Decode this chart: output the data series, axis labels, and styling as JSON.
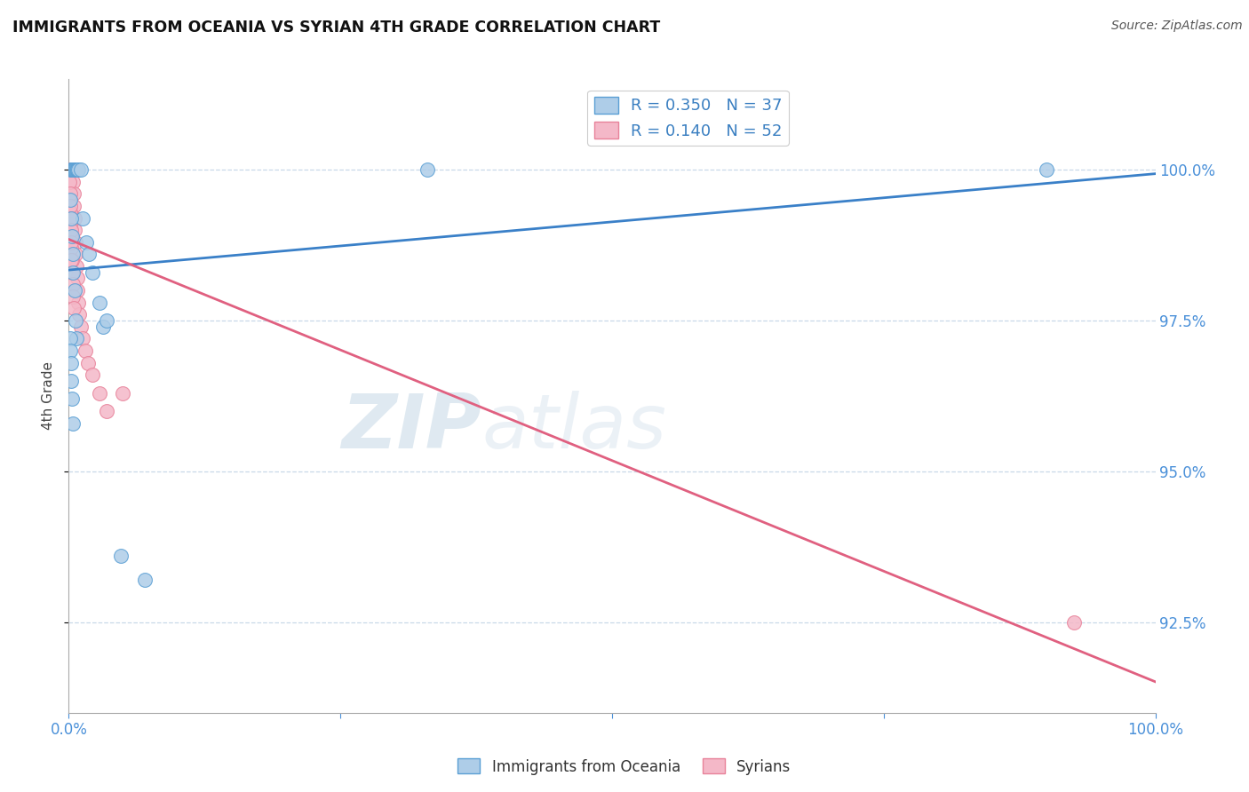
{
  "title": "IMMIGRANTS FROM OCEANIA VS SYRIAN 4TH GRADE CORRELATION CHART",
  "source": "Source: ZipAtlas.com",
  "ylabel": "4th Grade",
  "xlim": [
    0.0,
    100.0
  ],
  "ylim": [
    91.0,
    101.5
  ],
  "yticks": [
    92.5,
    95.0,
    97.5,
    100.0
  ],
  "ytick_labels": [
    "92.5%",
    "95.0%",
    "97.5%",
    "100.0%"
  ],
  "legend_blue_R": "R = 0.350",
  "legend_blue_N": "N = 37",
  "legend_pink_R": "R = 0.140",
  "legend_pink_N": "N = 52",
  "blue_color": "#aecde8",
  "pink_color": "#f4b8c8",
  "blue_edge_color": "#5a9fd4",
  "pink_edge_color": "#e8829a",
  "blue_line_color": "#3a80c8",
  "pink_line_color": "#e06080",
  "watermark_zip": "ZIP",
  "watermark_atlas": "atlas",
  "blue_scatter_x": [
    0.18,
    0.22,
    0.3,
    0.38,
    0.45,
    0.52,
    0.6,
    0.68,
    0.75,
    0.82,
    0.9,
    1.1,
    1.3,
    1.6,
    1.85,
    2.2,
    2.8,
    3.2,
    0.15,
    0.2,
    0.28,
    0.35,
    0.42,
    0.55,
    0.65,
    0.72,
    0.1,
    0.14,
    0.18,
    0.22,
    0.28,
    0.35,
    3.5,
    4.8,
    7.0,
    33.0,
    90.0
  ],
  "blue_scatter_y": [
    100.0,
    100.0,
    100.0,
    100.0,
    100.0,
    100.0,
    100.0,
    100.0,
    100.0,
    100.0,
    100.0,
    100.0,
    99.2,
    98.8,
    98.6,
    98.3,
    97.8,
    97.4,
    99.5,
    99.2,
    98.9,
    98.6,
    98.3,
    98.0,
    97.5,
    97.2,
    97.2,
    97.0,
    96.8,
    96.5,
    96.2,
    95.8,
    97.5,
    93.6,
    93.2,
    100.0,
    100.0
  ],
  "pink_scatter_x": [
    0.05,
    0.08,
    0.1,
    0.12,
    0.15,
    0.18,
    0.2,
    0.22,
    0.25,
    0.28,
    0.3,
    0.32,
    0.35,
    0.38,
    0.42,
    0.45,
    0.48,
    0.52,
    0.55,
    0.6,
    0.65,
    0.7,
    0.75,
    0.8,
    0.88,
    0.95,
    1.1,
    1.3,
    1.5,
    1.8,
    2.2,
    2.8,
    3.5,
    0.06,
    0.1,
    0.14,
    0.18,
    0.22,
    0.26,
    0.3,
    0.35,
    0.4,
    0.45,
    0.08,
    0.12,
    0.16,
    0.2,
    0.24,
    5.0,
    0.18,
    0.25,
    92.5
  ],
  "pink_scatter_y": [
    100.0,
    100.0,
    100.0,
    100.0,
    100.0,
    100.0,
    100.0,
    100.0,
    100.0,
    100.0,
    100.0,
    100.0,
    100.0,
    100.0,
    99.8,
    99.6,
    99.4,
    99.2,
    99.0,
    98.8,
    98.6,
    98.4,
    98.2,
    98.0,
    97.8,
    97.6,
    97.4,
    97.2,
    97.0,
    96.8,
    96.6,
    96.3,
    96.0,
    99.5,
    99.3,
    99.1,
    98.9,
    98.7,
    98.5,
    98.3,
    98.1,
    97.9,
    97.7,
    99.8,
    99.6,
    99.4,
    99.2,
    99.0,
    96.3,
    98.8,
    98.5,
    92.5
  ]
}
